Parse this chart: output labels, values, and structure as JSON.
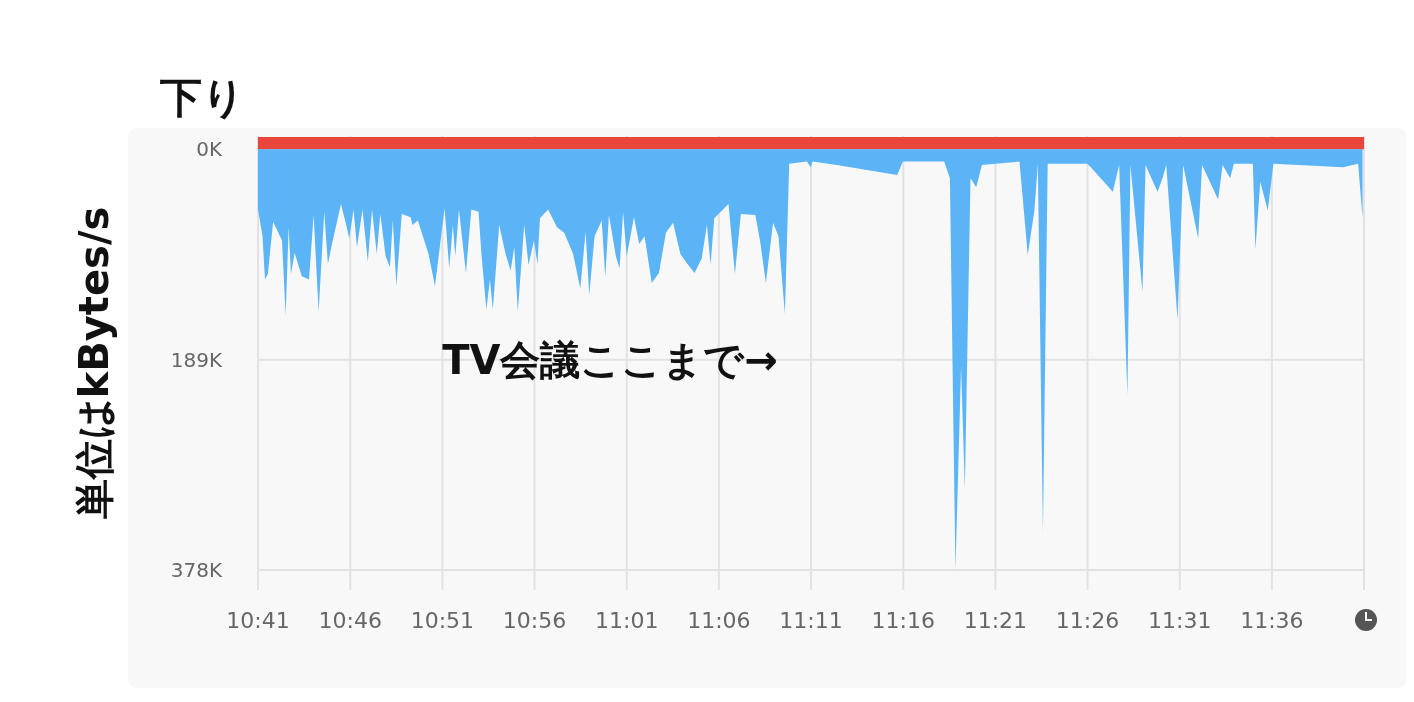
{
  "chart_data": {
    "type": "area",
    "title": "下り",
    "ylabel": "単位はkBytes/s",
    "annotations": [
      "TV会議ここまで→"
    ],
    "xlim": [
      10.6833,
      11.6833
    ],
    "xticks": [
      {
        "value": 10.6833,
        "label": "10:41"
      },
      {
        "value": 10.7667,
        "label": "10:46"
      },
      {
        "value": 10.85,
        "label": "10:51"
      },
      {
        "value": 10.9333,
        "label": "10:56"
      },
      {
        "value": 11.0167,
        "label": "11:01"
      },
      {
        "value": 11.1,
        "label": "11:06"
      },
      {
        "value": 11.1833,
        "label": "11:11"
      },
      {
        "value": 11.2667,
        "label": "11:16"
      },
      {
        "value": 11.35,
        "label": "11:21"
      },
      {
        "value": 11.4333,
        "label": "11:26"
      },
      {
        "value": 11.5167,
        "label": "11:31"
      },
      {
        "value": 11.6,
        "label": "11:36"
      }
    ],
    "ylim": [
      378,
      -12
    ],
    "yticks": [
      {
        "value": 0,
        "label": "0K"
      },
      {
        "value": 189,
        "label": "189K"
      },
      {
        "value": 378,
        "label": "378K"
      }
    ],
    "grid": true,
    "series": [
      {
        "color": "#e8453c",
        "x": [
          10.6833,
          11.1833,
          11.6833
        ],
        "values": [
          -11,
          -11,
          -11
        ]
      },
      {
        "color": "#5ab4f5",
        "x": [
          10.6833,
          10.6874,
          10.6896,
          10.6922,
          10.697,
          10.705,
          10.7083,
          10.711,
          10.7131,
          10.7164,
          10.7229,
          10.7294,
          10.7336,
          10.7381,
          10.7432,
          10.7465,
          10.7502,
          10.7583,
          10.7626,
          10.7658,
          10.7697,
          10.7728,
          10.7778,
          10.7826,
          10.7864,
          10.7907,
          10.7939,
          10.7987,
          10.8026,
          10.8052,
          10.8084,
          10.8133,
          10.8213,
          10.823,
          10.8278,
          10.8375,
          10.8433,
          10.852,
          10.8562,
          10.8595,
          10.8617,
          10.865,
          10.8713,
          10.8762,
          10.8827,
          10.8853,
          10.8898,
          10.893,
          10.8956,
          10.9014,
          10.9069,
          10.9117,
          10.915,
          10.9182,
          10.924,
          10.9279,
          10.9328,
          10.936,
          10.9382,
          10.9456,
          10.9536,
          10.9602,
          10.9682,
          10.9747,
          10.9795,
          10.9828,
          10.9876,
          10.9941,
          10.9973,
          11.0006,
          11.0069,
          11.0102,
          11.0134,
          11.0167,
          11.0232,
          11.028,
          11.0328,
          11.0393,
          11.0458,
          11.0521,
          11.0586,
          11.0652,
          11.0716,
          11.078,
          11.0845,
          11.0892,
          11.0925,
          11.0958,
          11.1087,
          11.1145,
          11.1199,
          11.133,
          11.1377,
          11.1425,
          11.149,
          11.1539,
          11.1597,
          11.1636,
          11.1796,
          11.1829,
          11.1847,
          11.2067,
          11.2612,
          11.2664,
          11.3037,
          11.3089,
          11.3139,
          11.319,
          11.3224,
          11.3275,
          11.3327,
          11.3378,
          11.3718,
          11.3793,
          11.3853,
          11.3884,
          11.393,
          11.3973,
          11.433,
          11.4363,
          11.4562,
          11.4619,
          11.4694,
          11.4721,
          11.483,
          11.4858,
          11.4966,
          11.5011,
          11.5045,
          11.5147,
          11.5198,
          11.5334,
          11.5369,
          11.5514,
          11.5555,
          11.5623,
          11.5656,
          11.5828,
          11.5851,
          11.5895,
          11.5963,
          11.6014,
          11.6644,
          11.678,
          11.682
        ],
        "values": [
          54,
          78,
          117,
          112,
          65,
          82,
          149,
          70,
          112,
          93,
          114,
          117,
          59,
          146,
          56,
          103,
          85,
          49,
          66,
          80,
          54,
          88,
          54,
          101,
          54,
          94,
          58,
          96,
          106,
          64,
          123,
          58,
          61,
          68,
          64,
          94,
          123,
          53,
          107,
          68,
          96,
          54,
          111,
          54,
          56,
          94,
          144,
          117,
          144,
          68,
          93,
          109,
          88,
          146,
          68,
          104,
          82,
          103,
          62,
          54,
          70,
          75,
          94,
          125,
          74,
          131,
          78,
          64,
          115,
          59,
          96,
          107,
          56,
          96,
          61,
          85,
          78,
          120,
          111,
          75,
          66,
          94,
          103,
          111,
          98,
          68,
          104,
          62,
          49,
          112,
          58,
          59,
          85,
          120,
          66,
          78,
          148,
          13,
          11,
          16,
          11,
          14,
          23,
          11,
          11,
          26,
          378,
          195,
          305,
          26,
          34,
          14,
          11,
          95,
          55,
          13,
          344,
          13,
          13,
          16,
          38,
          14,
          221,
          14,
          128,
          14,
          38,
          26,
          14,
          153,
          14,
          80,
          14,
          45,
          14,
          26,
          13,
          13,
          90,
          29,
          55,
          13,
          16,
          13,
          62
        ]
      }
    ]
  }
}
